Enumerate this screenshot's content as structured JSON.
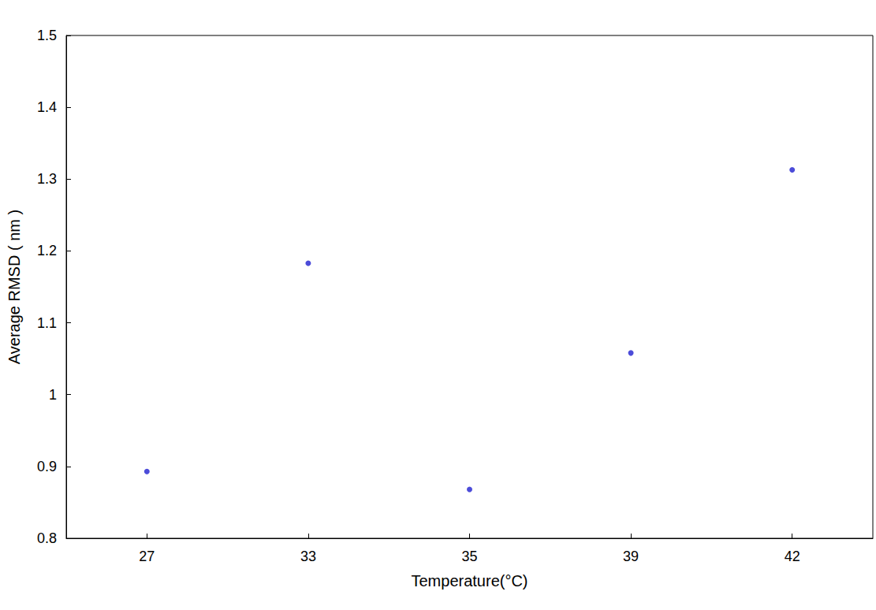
{
  "chart_data": {
    "type": "scatter",
    "x_label": "Temperature(°C)",
    "y_label": "Average RMSD ( nm )",
    "categories": [
      "27",
      "33",
      "35",
      "39",
      "42"
    ],
    "values": [
      0.893,
      1.183,
      0.868,
      1.058,
      1.313
    ],
    "color": "#1f1fd0",
    "marker": "circle",
    "ylim": [
      0.8,
      1.5
    ],
    "yticks": [
      0.8,
      0.9,
      1,
      1.1,
      1.2,
      1.3,
      1.4,
      1.5
    ],
    "grid": false
  }
}
